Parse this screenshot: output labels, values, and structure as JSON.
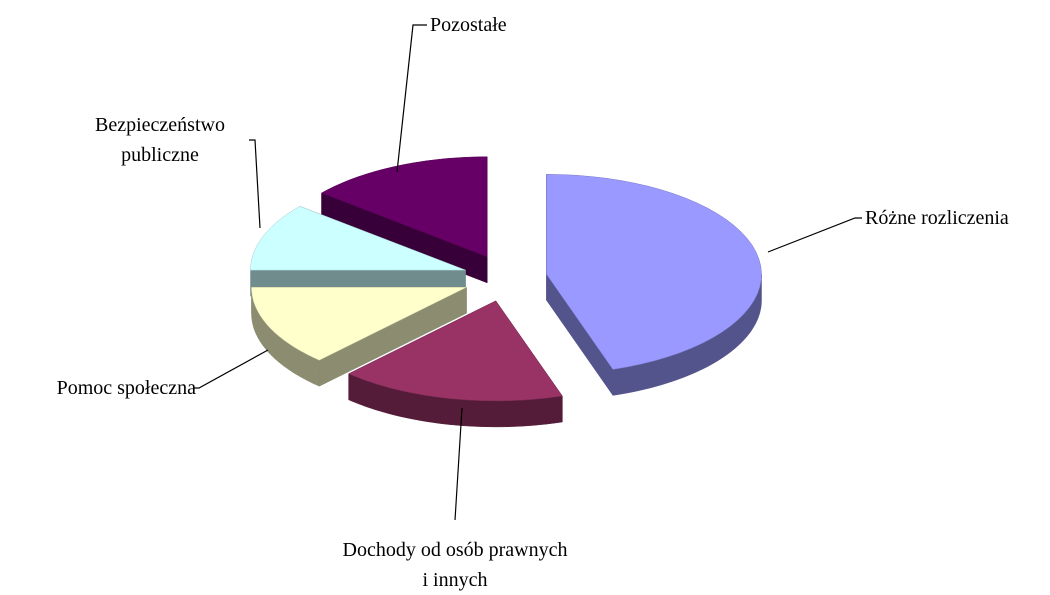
{
  "chart_data": {
    "type": "pie3d",
    "categories": [
      "Różne rozliczenia",
      "Dochody od osób prawnych i innych",
      "Pomoc społeczna",
      "Bezpieczeństwo publiczne",
      "Pozostałe"
    ],
    "values": [
      45,
      17,
      13,
      11,
      14
    ],
    "colors": [
      "#9999ff",
      "#993366",
      "#ffffcc",
      "#ccffff",
      "#660066"
    ]
  }
}
